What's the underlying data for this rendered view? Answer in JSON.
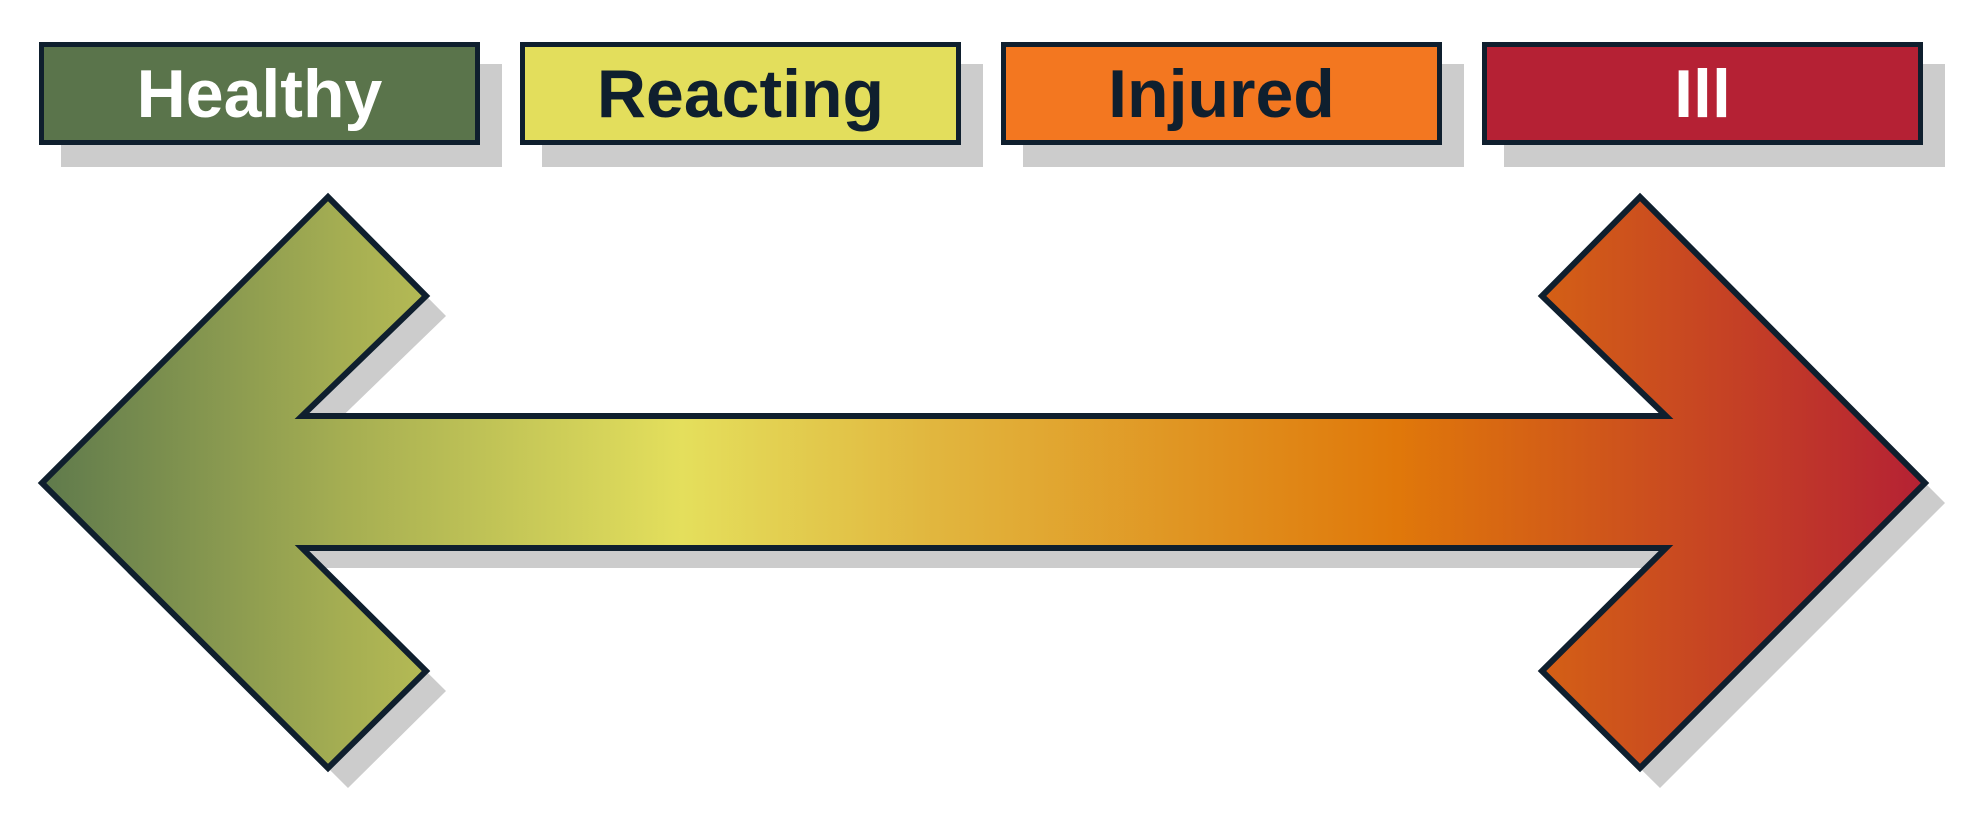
{
  "states": [
    {
      "label": "Healthy",
      "color": "#5a744b",
      "text_color": "#ffffff"
    },
    {
      "label": "Reacting",
      "color": "#e3de5c",
      "text_color": "#0f1f2e"
    },
    {
      "label": "Injured",
      "color": "#f37720",
      "text_color": "#0f1f2e"
    },
    {
      "label": "Ill",
      "color": "#b52134",
      "text_color": "#ffffff"
    }
  ],
  "arrow": {
    "gradient": [
      "#5f7a4c",
      "#a5ae52",
      "#e4df5c",
      "#e1b73f",
      "#e0780a",
      "#b52134"
    ],
    "outline": "#0f1f2e",
    "shadow": "#cccccc"
  }
}
